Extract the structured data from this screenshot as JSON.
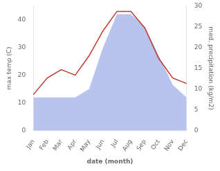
{
  "chart_data": {
    "type": "line",
    "categories": [
      "Jan",
      "Feb",
      "Mar",
      "Apr",
      "May",
      "Jun",
      "Jul",
      "Aug",
      "Sep",
      "Oct",
      "Nov",
      "Dec"
    ],
    "xlabel": "date (month)",
    "ylabel": "max temp (C)",
    "y2label": "med. precipitation (kg/m2)",
    "ylim": [
      0,
      45
    ],
    "yticks": [
      0,
      10,
      20,
      30,
      40
    ],
    "y2lim": [
      0,
      30
    ],
    "y2ticks": [
      0,
      5,
      10,
      15,
      20,
      25,
      30
    ],
    "grid": false,
    "series": [
      {
        "type": "area",
        "color": "#b8c4ee",
        "axis": "y2",
        "values": [
          8,
          8,
          8,
          8,
          10,
          20,
          28,
          28,
          25,
          18,
          11,
          8
        ]
      },
      {
        "type": "line",
        "color": "#c0392b",
        "values": [
          13,
          19,
          22,
          20,
          27,
          36,
          43,
          43,
          37,
          26,
          19,
          17
        ]
      }
    ]
  }
}
